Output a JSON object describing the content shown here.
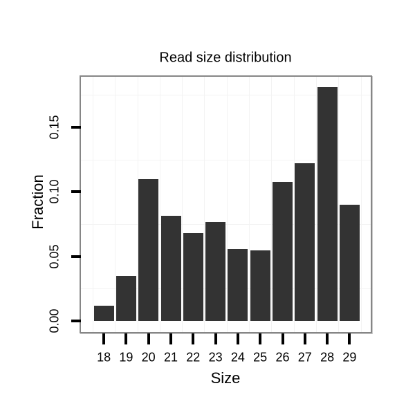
{
  "chart_data": {
    "type": "bar",
    "title": "Read size distribution",
    "xlabel": "Size",
    "ylabel": "Fraction",
    "categories": [
      "18",
      "19",
      "20",
      "21",
      "22",
      "23",
      "24",
      "25",
      "26",
      "27",
      "28",
      "29"
    ],
    "values": [
      0.0116,
      0.0346,
      0.11,
      0.0816,
      0.068,
      0.0768,
      0.0559,
      0.0545,
      0.1074,
      0.1221,
      0.181,
      0.09
    ],
    "ytick_labels": [
      "0.00",
      "0.05",
      "0.10",
      "0.15"
    ],
    "ytick_values": [
      0.0,
      0.05,
      0.1,
      0.15
    ],
    "minor_y_gridlines": [
      0.025,
      0.075,
      0.125,
      0.175
    ],
    "ylim": [
      -0.0085,
      0.189
    ],
    "grid": "faint minor gridlines only (horizontal at 0.025 steps, vertical between bars)",
    "legend": "none",
    "colors": {
      "bar_fill": "#333333",
      "panel_border": "#868686",
      "grid_minor": "#f3f3f3",
      "axis_tick": "#000000",
      "text": "#000000",
      "background": "#ffffff"
    }
  }
}
